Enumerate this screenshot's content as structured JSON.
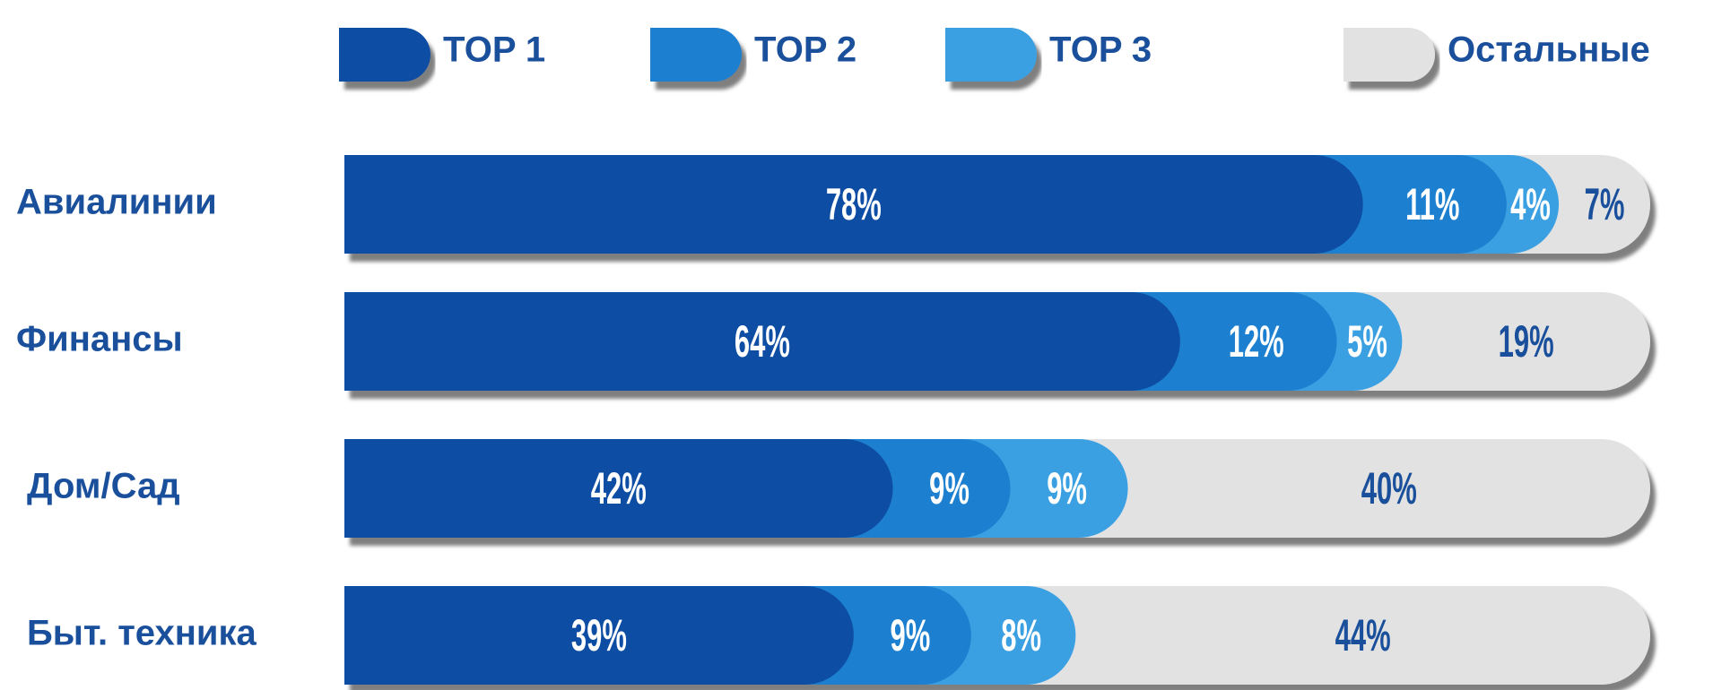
{
  "chart_data": {
    "type": "stacked-bar",
    "categories": [
      "Авиалинии",
      "Финансы",
      "Дом/Сад",
      "Быт. техника"
    ],
    "series": [
      {
        "name": "TOP 1",
        "color": "#0d4ea3",
        "values": [
          78,
          64,
          42,
          39
        ],
        "value_labels": [
          "78%",
          "64%",
          "42%",
          "39%"
        ]
      },
      {
        "name": "TOP 2",
        "color": "#1f7fcf",
        "values": [
          11,
          12,
          9,
          9
        ],
        "value_labels": [
          "11%",
          "12%",
          "9%",
          "9%"
        ]
      },
      {
        "name": "TOP 3",
        "color": "#3ba0e2",
        "values": [
          4,
          5,
          9,
          8
        ],
        "value_labels": [
          "4%",
          "5%",
          "9%",
          "8%"
        ]
      },
      {
        "name": "Остальные",
        "color": "#e2e2e2",
        "values": [
          7,
          19,
          40,
          44
        ],
        "value_labels": [
          "7%",
          "19%",
          "40%",
          "44%"
        ]
      }
    ]
  }
}
